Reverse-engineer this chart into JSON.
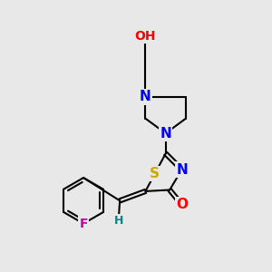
{
  "bg_color": "#e8e8e8",
  "atom_colors": {
    "C": "#000000",
    "N": "#0000ff",
    "O": "#ff0000",
    "S": "#ccaa00",
    "F": "#cc00aa",
    "H": "#008888"
  },
  "bond_color": "#000000",
  "bond_width": 1.5,
  "font_size": 10
}
